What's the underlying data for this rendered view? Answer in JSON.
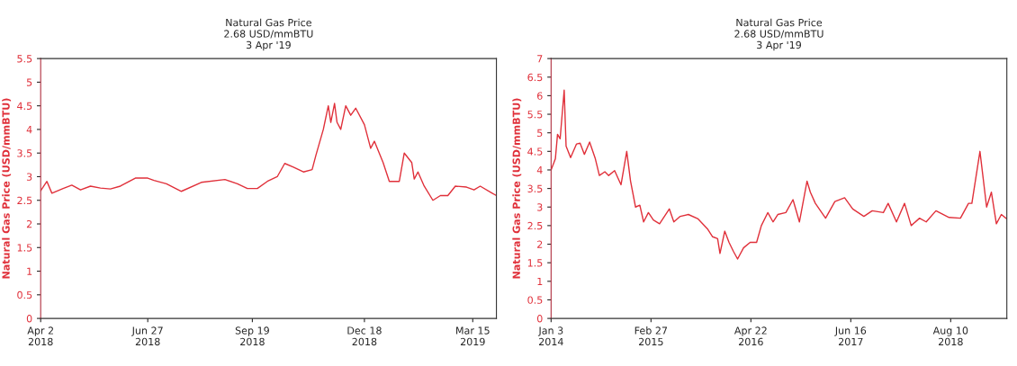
{
  "chart_data": [
    {
      "type": "line",
      "title": "Natural Gas Price",
      "subtitle": "2.68 USD/mmBTU\n3 Apr '19",
      "ylabel": "Natural Gas Price (USD/mmBTU)",
      "xlim": [
        "2018-04-02",
        "2019-04-03"
      ],
      "ylim": [
        0,
        5.5
      ],
      "yticks": [
        0,
        0.5,
        1,
        1.5,
        2,
        2.5,
        3,
        3.5,
        4,
        4.5,
        5,
        5.5
      ],
      "xticks": [
        {
          "value": "2018-04-02",
          "label": "Apr 2\n2018"
        },
        {
          "value": "2018-06-27",
          "label": "Jun 27\n2018"
        },
        {
          "value": "2018-09-19",
          "label": "Sep 19\n2018"
        },
        {
          "value": "2018-12-18",
          "label": "Dec 18\n2018"
        },
        {
          "value": "2019-03-15",
          "label": "Mar 15\n2019"
        }
      ],
      "grid": false,
      "line_style": "solid",
      "marker": "none",
      "series": [
        {
          "color": "#e0303a",
          "x": [
            "2018-04-02",
            "2018-04-07",
            "2018-04-11",
            "2018-04-20",
            "2018-04-27",
            "2018-05-04",
            "2018-05-12",
            "2018-05-20",
            "2018-05-28",
            "2018-06-05",
            "2018-06-17",
            "2018-06-27",
            "2018-07-02",
            "2018-07-12",
            "2018-07-24",
            "2018-08-09",
            "2018-08-28",
            "2018-09-07",
            "2018-09-15",
            "2018-09-23",
            "2018-10-01",
            "2018-10-09",
            "2018-10-15",
            "2018-10-22",
            "2018-10-30",
            "2018-11-06",
            "2018-11-09",
            "2018-11-15",
            "2018-11-19",
            "2018-11-21",
            "2018-11-24",
            "2018-11-26",
            "2018-11-29",
            "2018-12-03",
            "2018-12-07",
            "2018-12-11",
            "2018-12-18",
            "2018-12-23",
            "2018-12-26",
            "2019-01-02",
            "2019-01-07",
            "2019-01-15",
            "2019-01-19",
            "2019-01-25",
            "2019-01-27",
            "2019-01-30",
            "2019-02-04",
            "2019-02-11",
            "2019-02-17",
            "2019-02-23",
            "2019-03-01",
            "2019-03-10",
            "2019-03-16",
            "2019-03-21",
            "2019-03-30",
            "2019-04-03"
          ],
          "values": [
            2.7,
            2.9,
            2.65,
            2.75,
            2.82,
            2.72,
            2.8,
            2.76,
            2.74,
            2.8,
            2.97,
            2.97,
            2.92,
            2.85,
            2.69,
            2.88,
            2.94,
            2.85,
            2.75,
            2.75,
            2.9,
            3.0,
            3.28,
            3.2,
            3.1,
            3.15,
            3.45,
            4.0,
            4.5,
            4.15,
            4.55,
            4.15,
            4.0,
            4.5,
            4.3,
            4.45,
            4.1,
            3.6,
            3.75,
            3.3,
            2.9,
            2.9,
            3.5,
            3.3,
            2.95,
            3.1,
            2.8,
            2.5,
            2.6,
            2.6,
            2.8,
            2.78,
            2.72,
            2.8,
            2.66,
            2.6
          ]
        }
      ]
    },
    {
      "type": "line",
      "title": "Natural Gas Price",
      "subtitle": "2.68 USD/mmBTU\n3 Apr '19",
      "ylabel": "Natural Gas Price (USD/mmBTU)",
      "xlim": [
        "2014-01-03",
        "2019-04-03"
      ],
      "ylim": [
        0,
        7
      ],
      "yticks": [
        0,
        0.5,
        1,
        1.5,
        2,
        2.5,
        3,
        3.5,
        4,
        4.5,
        5,
        5.5,
        6,
        6.5,
        7
      ],
      "xticks": [
        {
          "value": "2014-01-03",
          "label": "Jan 3\n2014"
        },
        {
          "value": "2015-02-27",
          "label": "Feb 27\n2015"
        },
        {
          "value": "2016-04-22",
          "label": "Apr 22\n2016"
        },
        {
          "value": "2017-06-16",
          "label": "Jun 16\n2017"
        },
        {
          "value": "2018-08-10",
          "label": "Aug 10\n2018"
        }
      ],
      "grid": false,
      "line_style": "solid",
      "marker": "none",
      "series": [
        {
          "color": "#e0303a",
          "x": [
            "2014-01-03",
            "2014-01-21",
            "2014-01-30",
            "2014-02-10",
            "2014-02-27",
            "2014-03-07",
            "2014-03-26",
            "2014-04-20",
            "2014-05-05",
            "2014-05-23",
            "2014-06-14",
            "2014-07-08",
            "2014-07-25",
            "2014-08-17",
            "2014-09-02",
            "2014-09-27",
            "2014-10-24",
            "2014-11-17",
            "2014-12-03",
            "2014-12-24",
            "2015-01-11",
            "2015-01-27",
            "2015-02-16",
            "2015-03-09",
            "2015-04-04",
            "2015-05-15",
            "2015-06-03",
            "2015-06-30",
            "2015-08-03",
            "2015-09-13",
            "2015-10-24",
            "2015-11-13",
            "2015-12-04",
            "2015-12-14",
            "2016-01-03",
            "2016-01-21",
            "2016-02-09",
            "2016-02-26",
            "2016-03-22",
            "2016-04-19",
            "2016-05-16",
            "2016-06-05",
            "2016-07-02",
            "2016-07-24",
            "2016-08-13",
            "2016-09-16",
            "2016-10-16",
            "2016-11-12",
            "2016-12-14",
            "2016-12-28",
            "2017-01-18",
            "2017-03-02",
            "2017-04-10",
            "2017-05-21",
            "2017-06-24",
            "2017-08-10",
            "2017-09-14",
            "2017-10-31",
            "2017-11-20",
            "2017-12-25",
            "2018-01-28",
            "2018-02-25",
            "2018-04-01",
            "2018-04-29",
            "2018-06-09",
            "2018-08-03",
            "2018-09-20",
            "2018-10-24",
            "2018-11-07",
            "2018-12-11",
            "2019-01-08",
            "2019-01-28",
            "2019-02-18",
            "2019-03-11",
            "2019-04-03"
          ],
          "values": [
            4.0,
            4.3,
            4.96,
            4.84,
            6.15,
            4.64,
            4.33,
            4.7,
            4.72,
            4.42,
            4.75,
            4.3,
            3.85,
            3.95,
            3.85,
            3.98,
            3.6,
            4.5,
            3.7,
            3.0,
            3.05,
            2.6,
            2.85,
            2.65,
            2.55,
            2.95,
            2.6,
            2.75,
            2.8,
            2.68,
            2.4,
            2.2,
            2.15,
            1.75,
            2.35,
            2.05,
            1.8,
            1.6,
            1.9,
            2.05,
            2.05,
            2.5,
            2.85,
            2.6,
            2.8,
            2.85,
            3.2,
            2.6,
            3.7,
            3.4,
            3.1,
            2.7,
            3.15,
            3.25,
            2.95,
            2.75,
            2.9,
            2.85,
            3.1,
            2.6,
            3.1,
            2.5,
            2.7,
            2.6,
            2.9,
            2.72,
            2.7,
            3.1,
            3.1,
            4.5,
            3.0,
            3.4,
            2.55,
            2.8,
            2.68
          ]
        }
      ]
    }
  ]
}
